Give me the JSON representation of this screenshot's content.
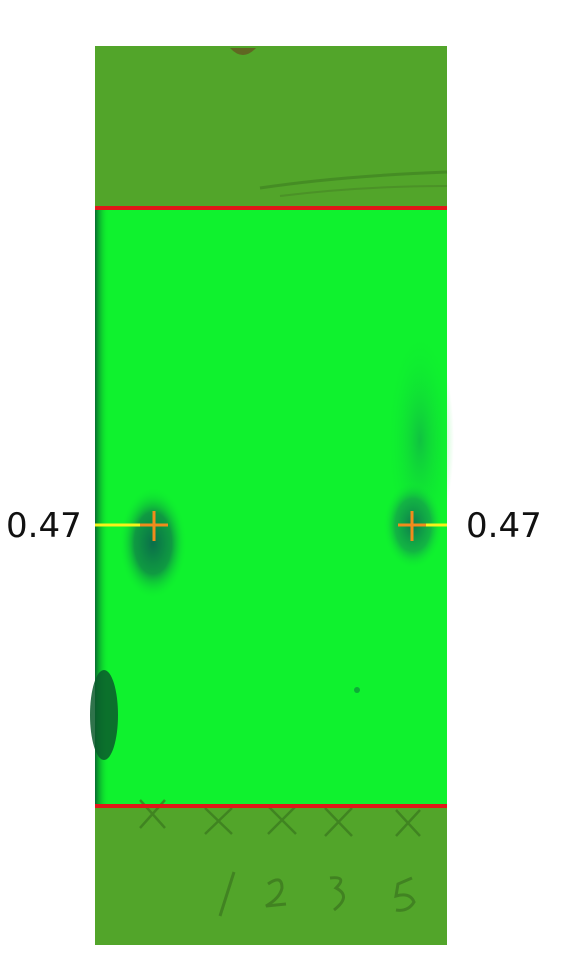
{
  "plate": {
    "rf_left": "0.47",
    "rf_right": "0.47",
    "lane_marks": "1 2 3 5",
    "colors": {
      "plate_green": "#0ff22e",
      "band_green": "#52a52a",
      "solvent_front": "#e01818",
      "baseline": "#e01818",
      "marker_line": "#f7f21a",
      "marker_cross": "#f28b1c"
    }
  }
}
